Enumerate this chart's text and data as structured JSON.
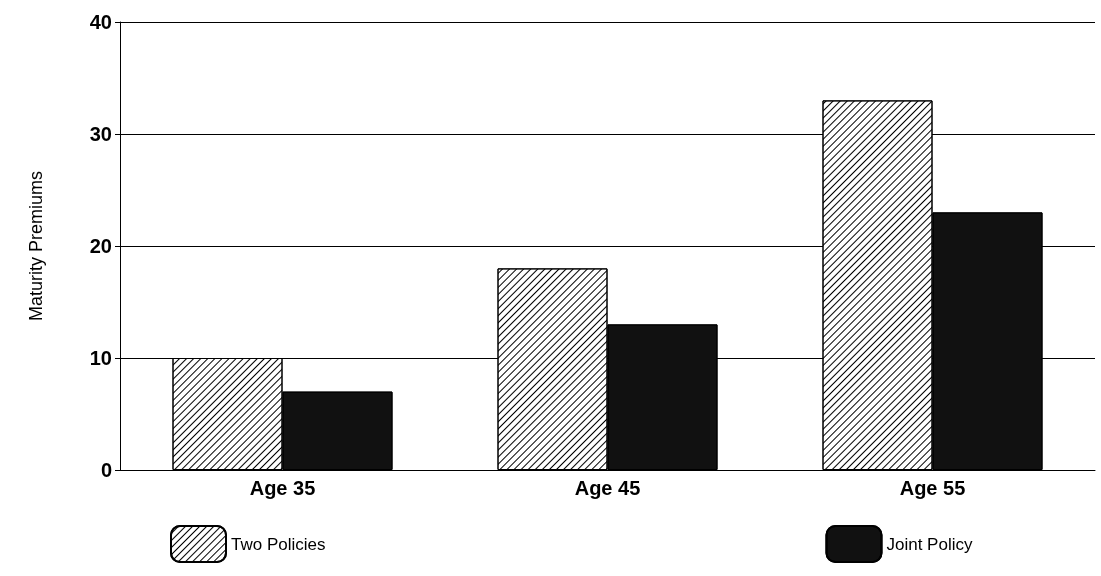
{
  "chart_data": {
    "type": "bar",
    "ylabel": "Maturity Premiums",
    "categories": [
      "Age 35",
      "Age 45",
      "Age 55"
    ],
    "series": [
      {
        "name": "Two Policies",
        "color": "#ffffff",
        "values": [
          10,
          18,
          33
        ]
      },
      {
        "name": "Joint Policy",
        "color": "#111111",
        "values": [
          7,
          13,
          23
        ]
      }
    ],
    "ylim": [
      0,
      40
    ],
    "yticks": [
      0,
      10,
      20,
      30,
      40
    ],
    "grid": "y",
    "legend": "bottom"
  }
}
